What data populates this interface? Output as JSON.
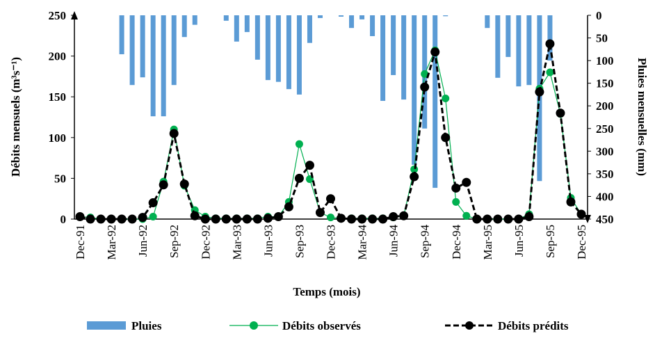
{
  "chart_data": {
    "type": "bar-line",
    "x_label": "Temps (mois)",
    "y_label": "Débits mensuels (m³s⁻¹)",
    "y2_label": "Pluies mensuelles (mm)",
    "categories": [
      "Dec-91",
      null,
      null,
      "Mar-92",
      null,
      null,
      "Jun-92",
      null,
      null,
      "Sep-92",
      null,
      null,
      "Dec-92",
      null,
      null,
      "Mar-93",
      null,
      null,
      "Jun-93",
      null,
      null,
      "Sep-93",
      null,
      null,
      "Dec-93",
      null,
      null,
      "Mar-94",
      null,
      null,
      "Jun-94",
      null,
      null,
      "Sep-94",
      null,
      null,
      "Dec-94",
      null,
      null,
      "Mar-95",
      null,
      null,
      "Jun-95",
      null,
      null,
      "Sep-95",
      null,
      null,
      "Dec-95"
    ],
    "ylim": [
      0,
      250
    ],
    "yticks": [
      0,
      50,
      100,
      150,
      200,
      250
    ],
    "y2lim": [
      0,
      450
    ],
    "y2ticks": [
      0,
      50,
      100,
      150,
      200,
      250,
      300,
      350,
      400,
      450
    ],
    "y2_inverted": true,
    "series": [
      {
        "name": "Pluies",
        "kind": "bar",
        "axis": "y2",
        "color": "#5b9bd5",
        "values": [
          0,
          0,
          0,
          0,
          86,
          154,
          137,
          223,
          223,
          154,
          48,
          21,
          0,
          0,
          12,
          58,
          37,
          98,
          143,
          147,
          163,
          175,
          61,
          6,
          0,
          3,
          28,
          9,
          46,
          189,
          132,
          186,
          330,
          250,
          381,
          2,
          0,
          0,
          0,
          28,
          138,
          92,
          157,
          154,
          366,
          100,
          0,
          0,
          0
        ]
      },
      {
        "name": "Débits observés",
        "kind": "line",
        "color": "#00b050",
        "values": [
          3,
          2,
          0,
          0,
          0,
          0,
          0,
          3,
          46,
          110,
          41,
          11,
          3,
          1,
          1,
          1,
          1,
          1,
          3,
          3,
          21,
          92,
          49,
          8,
          2,
          1,
          1,
          1,
          1,
          1,
          2,
          4,
          61,
          178,
          207,
          148,
          21,
          4,
          0,
          0,
          0,
          0,
          0,
          6,
          160,
          180,
          129,
          26,
          6
        ]
      },
      {
        "name": "Débits prédits",
        "kind": "dashed-line",
        "color": "#000000",
        "values": [
          3,
          0,
          0,
          0,
          0,
          0,
          2,
          20,
          42,
          105,
          43,
          4,
          0,
          0,
          0,
          0,
          0,
          0,
          1,
          3,
          15,
          50,
          66,
          8,
          25,
          1,
          0,
          0,
          0,
          0,
          3,
          4,
          52,
          162,
          205,
          100,
          38,
          45,
          0,
          0,
          0,
          0,
          0,
          3,
          156,
          215,
          130,
          21,
          6
        ]
      }
    ]
  }
}
